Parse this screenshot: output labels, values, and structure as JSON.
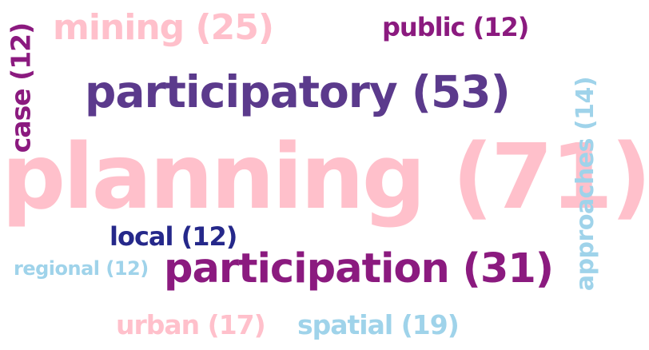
{
  "word_cloud": {
    "words": [
      {
        "text": "planning (71)",
        "color": "#ffc0cb"
      },
      {
        "text": "participatory (53)",
        "color": "#5b3a8c"
      },
      {
        "text": "participation (31)",
        "color": "#8b1a7f"
      },
      {
        "text": "mining (25)",
        "color": "#ffc0cb"
      },
      {
        "text": "spatial (19)",
        "color": "#9fd3ea"
      },
      {
        "text": "urban (17)",
        "color": "#ffc0cb"
      },
      {
        "text": "approaches (14)",
        "color": "#9fd3ea"
      },
      {
        "text": "public (12)",
        "color": "#8b1a7f"
      },
      {
        "text": "case (12)",
        "color": "#8b1a7f"
      },
      {
        "text": "local (12)",
        "color": "#25288a"
      },
      {
        "text": "regional (12)",
        "color": "#9fd3ea"
      }
    ]
  }
}
